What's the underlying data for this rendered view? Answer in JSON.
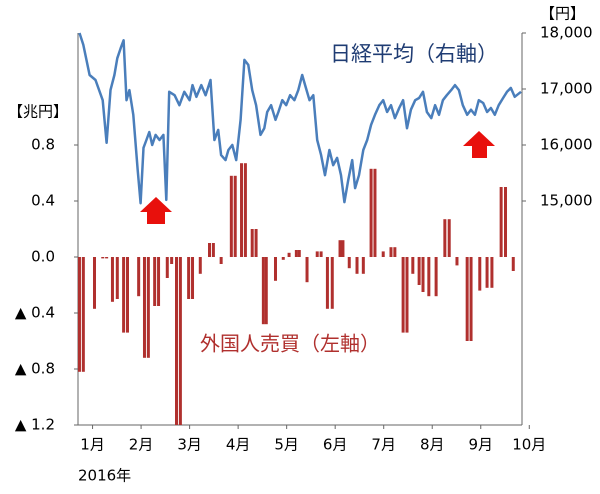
{
  "chart_data": {
    "type": "combo",
    "xlim": [
      0.7,
      9.85
    ],
    "xticks": [
      {
        "value": 1,
        "label": "1月"
      },
      {
        "value": 2,
        "label": "2月"
      },
      {
        "value": 3,
        "label": "3月"
      },
      {
        "value": 4,
        "label": "4月"
      },
      {
        "value": 5,
        "label": "5月"
      },
      {
        "value": 6,
        "label": "6月"
      },
      {
        "value": 7,
        "label": "7月"
      },
      {
        "value": 8,
        "label": "8月"
      },
      {
        "value": 9,
        "label": "9月"
      },
      {
        "value": 10,
        "label": "10月"
      }
    ],
    "x_label": "2016年",
    "y_label": "【兆円】",
    "y2_label": "【円】",
    "ylim": [
      -1.2,
      1.6
    ],
    "yticks": [
      0.8,
      0.4,
      {
        "value": 0,
        "label": "0.0"
      },
      {
        "value": -0.4,
        "label": "▲ 0.4"
      },
      {
        "value": -0.8,
        "label": "▲ 0.8"
      },
      {
        "value": -1.2,
        "label": "▲ 1.2"
      }
    ],
    "y2lim": [
      11000,
      18000
    ],
    "y2ticks": [
      {
        "value": 18000,
        "label": "18,000"
      },
      {
        "value": 17000,
        "label": "17,000"
      },
      {
        "value": 16000,
        "label": "16,000"
      },
      {
        "value": 15000,
        "label": "15,000"
      }
    ],
    "series": [
      {
        "name": "外国人売買（左軸）",
        "type": "bar",
        "color": "#b0302e",
        "x": [
          0.73,
          0.81,
          1.04,
          1.21,
          1.29,
          1.41,
          1.51,
          1.64,
          1.72,
          1.95,
          2.07,
          2.15,
          2.28,
          2.36,
          2.54,
          2.63,
          2.73,
          2.81,
          2.98,
          3.06,
          3.22,
          3.41,
          3.49,
          3.65,
          3.86,
          3.94,
          4.07,
          4.15,
          4.29,
          4.37,
          4.52,
          4.58,
          4.77,
          4.93,
          5.05,
          5.2,
          5.26,
          5.42,
          5.63,
          5.71,
          5.84,
          5.94,
          6.1,
          6.16,
          6.29,
          6.45,
          6.58,
          6.74,
          6.82,
          6.99,
          7.15,
          7.23,
          7.4,
          7.48,
          7.6,
          7.73,
          7.81,
          7.93,
          8.08,
          8.26,
          8.35,
          8.51,
          8.72,
          8.8,
          8.98,
          9.13,
          9.23,
          9.42,
          9.51,
          9.67
        ],
        "values": [
          -0.82,
          -0.82,
          -0.37,
          -0.01,
          -0.01,
          -0.32,
          -0.3,
          -0.54,
          -0.54,
          -0.28,
          -0.72,
          -0.72,
          -0.35,
          -0.35,
          -0.15,
          -0.05,
          -1.2,
          -1.2,
          -0.3,
          -0.3,
          -0.12,
          0.1,
          0.1,
          -0.05,
          0.58,
          0.58,
          0.67,
          0.67,
          0.2,
          0.2,
          -0.48,
          -0.48,
          -0.17,
          -0.02,
          0.03,
          0.05,
          0.05,
          -0.18,
          0.04,
          0.04,
          -0.37,
          -0.37,
          0.12,
          0.12,
          -0.08,
          -0.12,
          -0.12,
          0.63,
          0.63,
          0.04,
          0.07,
          0.07,
          -0.54,
          -0.54,
          -0.12,
          -0.2,
          -0.25,
          -0.28,
          -0.28,
          0.27,
          0.27,
          -0.06,
          -0.6,
          -0.6,
          -0.24,
          -0.22,
          -0.22,
          0.5,
          0.5,
          -0.1
        ]
      },
      {
        "name": "日経平均（右軸）",
        "type": "line",
        "axis": "y2",
        "color": "#4a7ebb",
        "x": [
          0.73,
          0.81,
          0.94,
          1.06,
          1.21,
          1.29,
          1.37,
          1.45,
          1.51,
          1.58,
          1.64,
          1.7,
          1.76,
          1.84,
          1.93,
          1.99,
          2.05,
          2.11,
          2.17,
          2.23,
          2.3,
          2.38,
          2.46,
          2.52,
          2.58,
          2.69,
          2.79,
          2.89,
          3.0,
          3.06,
          3.14,
          3.24,
          3.33,
          3.43,
          3.51,
          3.59,
          3.65,
          3.74,
          3.8,
          3.88,
          3.96,
          4.05,
          4.13,
          4.21,
          4.29,
          4.37,
          4.46,
          4.54,
          4.6,
          4.68,
          4.77,
          4.83,
          4.91,
          4.99,
          5.07,
          5.16,
          5.24,
          5.32,
          5.38,
          5.47,
          5.55,
          5.63,
          5.71,
          5.79,
          5.88,
          5.96,
          6.04,
          6.12,
          6.19,
          6.27,
          6.35,
          6.41,
          6.49,
          6.58,
          6.66,
          6.74,
          6.82,
          6.91,
          6.99,
          7.07,
          7.15,
          7.23,
          7.32,
          7.4,
          7.48,
          7.56,
          7.65,
          7.73,
          7.81,
          7.89,
          7.98,
          8.06,
          8.14,
          8.22,
          8.3,
          8.39,
          8.47,
          8.55,
          8.63,
          8.72,
          8.8,
          8.88,
          8.96,
          9.05,
          9.13,
          9.21,
          9.29,
          9.37,
          9.46,
          9.54,
          9.62,
          9.7,
          9.83
        ],
        "values": [
          18000,
          17790,
          17250,
          17160,
          16800,
          16040,
          16980,
          17250,
          17550,
          17730,
          17870,
          16800,
          16980,
          16540,
          15550,
          14960,
          15950,
          16090,
          16230,
          16000,
          16180,
          16090,
          16180,
          15020,
          16950,
          16890,
          16710,
          16950,
          16800,
          17070,
          16860,
          17070,
          16890,
          17160,
          16090,
          16270,
          15820,
          15730,
          15910,
          16000,
          15730,
          16450,
          17520,
          17430,
          16980,
          16710,
          16180,
          16300,
          16590,
          16710,
          16450,
          16590,
          16800,
          16710,
          16890,
          16800,
          16980,
          17250,
          17070,
          16800,
          16890,
          16090,
          15820,
          15460,
          15910,
          15640,
          15770,
          15460,
          14980,
          15380,
          15730,
          15230,
          15460,
          15910,
          16090,
          16360,
          16540,
          16710,
          16800,
          16590,
          16710,
          16480,
          16660,
          16800,
          16300,
          16630,
          16800,
          16840,
          16950,
          16590,
          16480,
          16710,
          16540,
          16800,
          16890,
          16980,
          17070,
          16980,
          16710,
          16540,
          16630,
          16540,
          16800,
          16750,
          16590,
          16660,
          16540,
          16710,
          16840,
          16950,
          17020,
          16860,
          16950
        ]
      }
    ]
  }
}
